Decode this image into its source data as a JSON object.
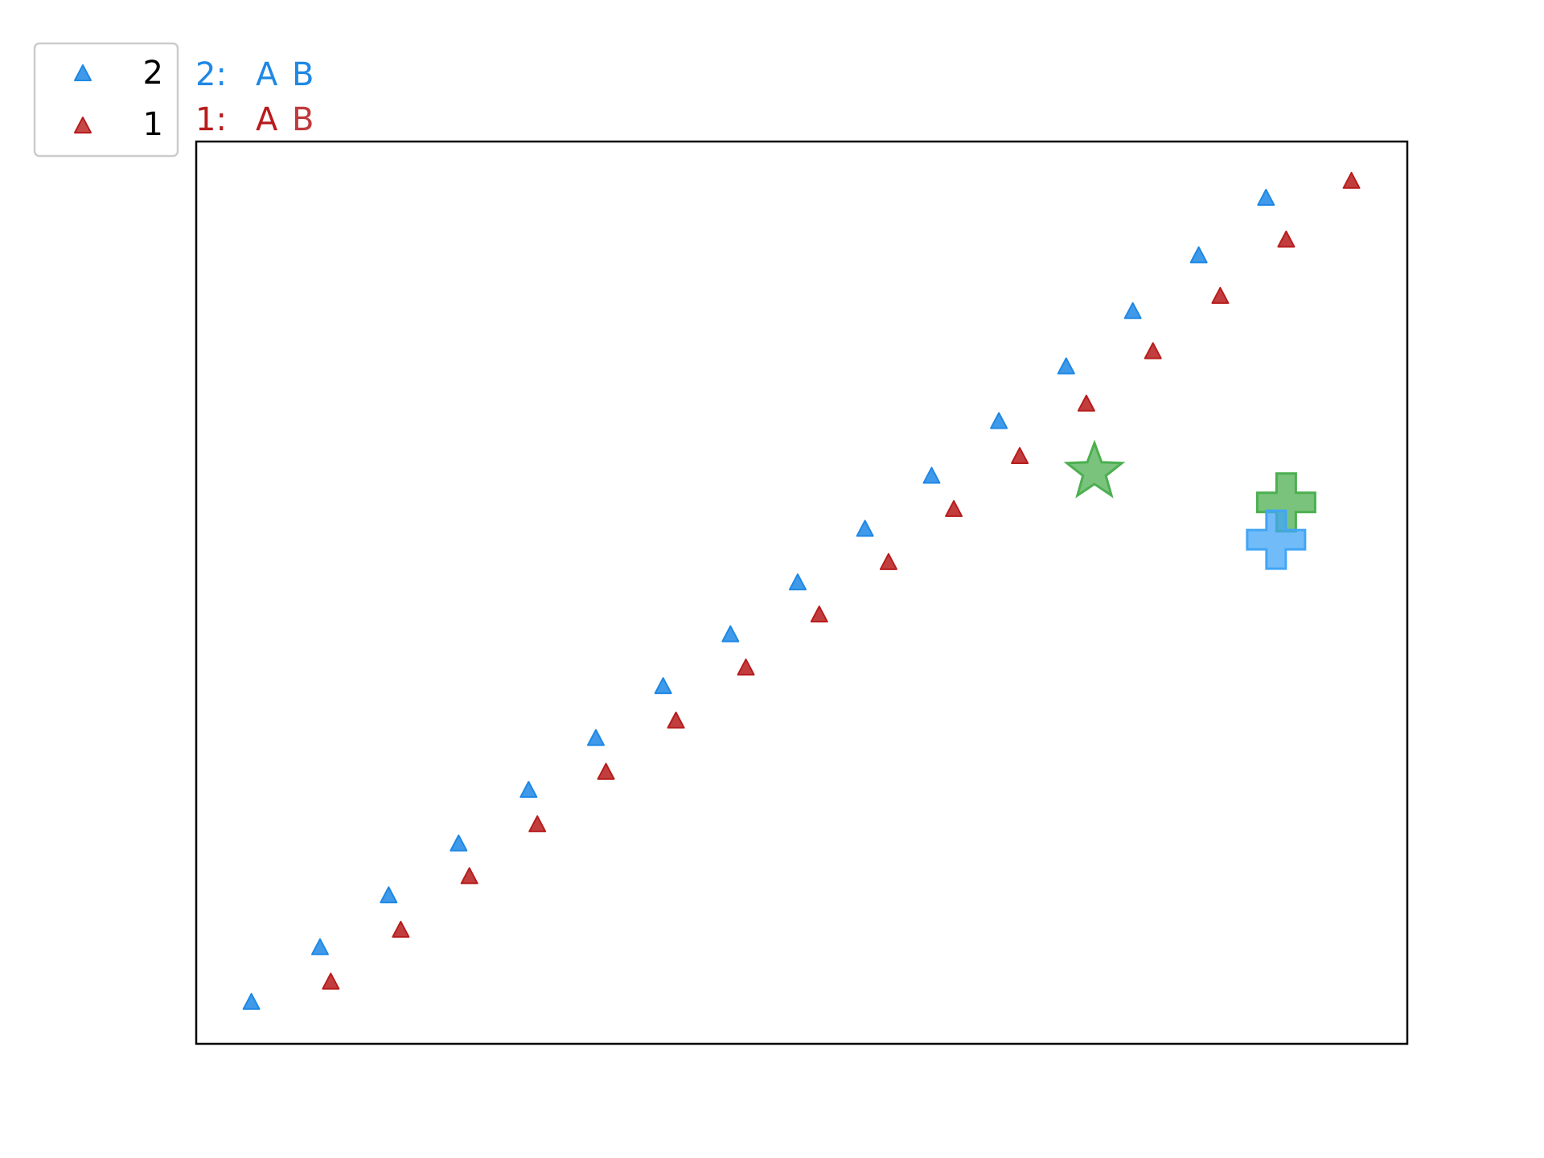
{
  "chart_data": {
    "type": "scatter",
    "title": "",
    "xlabel": "",
    "ylabel": "",
    "axes_visible": false,
    "grid": false,
    "xlim": [
      0,
      18
    ],
    "ylim": [
      0,
      16
    ],
    "legend": {
      "placement": "top-left, outside axes",
      "entries": [
        {
          "label": "2",
          "color": "#1e88e5"
        },
        {
          "label": "1",
          "color": "#b71c1c"
        }
      ]
    },
    "annotations": [
      {
        "series": "2",
        "prefix": "2:",
        "a": "A",
        "b": "B",
        "color": "#1e88e5",
        "color_b": "#1e88e5"
      },
      {
        "series": "1",
        "prefix": "1:",
        "a": "A",
        "b": "B",
        "color": "#b71c1c",
        "color_b": "#c0393b"
      }
    ],
    "series": [
      {
        "name": "2",
        "marker": "triangle",
        "color": "#1e88e5",
        "x": [
          0.82,
          1.84,
          2.86,
          3.9,
          4.94,
          5.94,
          6.94,
          7.94,
          8.94,
          9.94,
          10.93,
          11.93,
          12.93,
          13.92,
          14.9,
          15.9
        ],
        "y": [
          0.73,
          1.7,
          2.62,
          3.54,
          4.49,
          5.41,
          6.33,
          7.25,
          8.17,
          9.12,
          10.06,
          11.03,
          12.0,
          12.98,
          13.97,
          14.99
        ]
      },
      {
        "name": "1",
        "marker": "triangle",
        "color": "#b71c1c",
        "x": [
          2.0,
          3.04,
          4.06,
          5.07,
          6.09,
          7.13,
          8.17,
          9.26,
          10.29,
          11.26,
          12.24,
          13.23,
          14.22,
          15.22,
          16.2,
          17.17
        ],
        "y": [
          1.09,
          2.01,
          2.96,
          3.88,
          4.81,
          5.72,
          6.66,
          7.6,
          8.53,
          9.47,
          10.41,
          11.34,
          12.27,
          13.25,
          14.25,
          15.29
        ]
      }
    ],
    "special_markers": [
      {
        "marker": "star",
        "color": "#4caf50",
        "x": 13.35,
        "y": 10.14
      },
      {
        "marker": "plus",
        "color": "#4caf50",
        "x": 16.2,
        "y": 9.6
      },
      {
        "marker": "plus",
        "color": "#42a5f5",
        "x": 16.05,
        "y": 8.94
      }
    ]
  }
}
